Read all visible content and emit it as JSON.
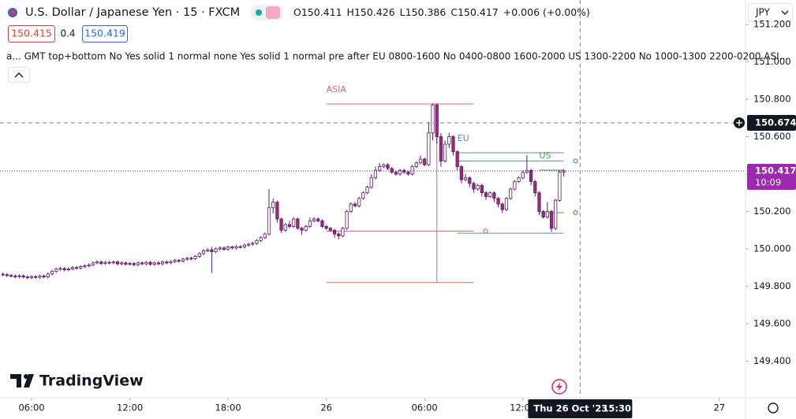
{
  "chart_data": {
    "type": "candlestick",
    "x": [
      4.25,
      4.5,
      4.75,
      5,
      5.25,
      5.5,
      5.75,
      6,
      6.25,
      6.5,
      6.75,
      7,
      7.25,
      7.5,
      7.75,
      8,
      8.25,
      8.5,
      8.75,
      9,
      9.25,
      9.5,
      9.75,
      10,
      10.25,
      10.5,
      10.75,
      11,
      11.25,
      11.5,
      11.75,
      12,
      12.25,
      12.5,
      12.75,
      13,
      13.25,
      13.5,
      13.75,
      14,
      14.25,
      14.5,
      14.75,
      15,
      15.25,
      15.5,
      15.75,
      16,
      16.25,
      16.5,
      16.75,
      17,
      17.25,
      17.5,
      17.75,
      18,
      18.25,
      18.5,
      18.75,
      19,
      19.25,
      19.5,
      19.75,
      20,
      20.25,
      20.5,
      20.75,
      21,
      21.25,
      21.5,
      21.75,
      22,
      22.25,
      22.5,
      22.75,
      23,
      23.25,
      23.5,
      23.75,
      24,
      24.25,
      24.5,
      24.75,
      25,
      25.25,
      25.5,
      25.75,
      26,
      26.25,
      26.5,
      26.75,
      27,
      27.25,
      27.5,
      27.75,
      28,
      28.25,
      28.5,
      28.75,
      29,
      29.25,
      29.5,
      29.75,
      30,
      30.25,
      30.5,
      30.75,
      31,
      31.25,
      31.5,
      31.75,
      32,
      32.25,
      32.5,
      32.75,
      33,
      33.25,
      33.5,
      33.75,
      34,
      34.25,
      34.5,
      34.75,
      35,
      35.25,
      35.5,
      35.75,
      36,
      36.25,
      36.5,
      36.75,
      37,
      37.25,
      37.5,
      37.75,
      38,
      38.25,
      38.5
    ],
    "open": [
      149.865,
      149.862,
      149.858,
      149.855,
      149.852,
      149.856,
      149.85,
      149.846,
      149.852,
      149.848,
      149.855,
      149.85,
      149.866,
      149.88,
      149.892,
      149.895,
      149.888,
      149.893,
      149.9,
      149.898,
      149.905,
      149.91,
      149.915,
      149.925,
      149.93,
      149.922,
      149.928,
      149.925,
      149.93,
      149.92,
      149.925,
      149.918,
      149.922,
      149.915,
      149.925,
      149.92,
      149.928,
      149.918,
      149.925,
      149.92,
      149.93,
      149.925,
      149.932,
      149.938,
      149.935,
      149.945,
      149.95,
      149.948,
      149.96,
      149.975,
      149.99,
      149.995,
      149.985,
      150.0,
      150.005,
      149.998,
      150.01,
      150.005,
      150.012,
      150.01,
      150.02,
      150.025,
      150.03,
      150.045,
      150.06,
      150.08,
      150.22,
      150.25,
      150.16,
      150.1,
      150.13,
      150.12,
      150.16,
      150.11,
      150.1,
      150.12,
      150.15,
      150.16,
      150.15,
      150.12,
      150.11,
      150.1,
      150.08,
      150.07,
      150.11,
      150.2,
      150.24,
      150.23,
      150.27,
      150.3,
      150.33,
      150.38,
      150.42,
      150.44,
      150.45,
      150.43,
      150.41,
      150.4,
      150.42,
      150.41,
      150.4,
      150.44,
      150.46,
      150.48,
      150.45,
      150.62,
      150.77,
      150.6,
      150.47,
      150.56,
      150.6,
      150.52,
      150.44,
      150.37,
      150.38,
      150.35,
      150.32,
      150.34,
      150.3,
      150.28,
      150.3,
      150.27,
      150.24,
      150.21,
      150.27,
      150.32,
      150.36,
      150.38,
      150.41,
      150.42,
      150.36,
      150.3,
      150.2,
      150.17,
      150.2,
      150.11,
      150.26,
      150.411
    ],
    "high": [
      149.873,
      149.87,
      149.866,
      149.863,
      149.864,
      149.864,
      149.858,
      149.86,
      149.86,
      149.863,
      149.863,
      149.874,
      149.888,
      149.9,
      149.903,
      149.903,
      149.901,
      149.908,
      149.908,
      149.913,
      149.918,
      149.923,
      149.933,
      149.938,
      149.938,
      149.936,
      149.936,
      149.938,
      149.938,
      149.933,
      149.933,
      149.93,
      149.93,
      149.933,
      149.933,
      149.936,
      149.936,
      149.933,
      149.933,
      149.938,
      149.938,
      149.94,
      149.946,
      149.946,
      149.953,
      149.958,
      149.958,
      149.968,
      149.983,
      149.998,
      150.003,
      150.01,
      150.008,
      150.013,
      150.013,
      150.018,
      150.018,
      150.02,
      150.02,
      150.028,
      150.033,
      150.038,
      150.053,
      150.068,
      150.088,
      150.32,
      150.27,
      150.258,
      150.168,
      150.138,
      150.15,
      150.17,
      150.168,
      150.118,
      150.128,
      150.168,
      150.17,
      150.168,
      150.158,
      150.128,
      150.118,
      150.108,
      150.088,
      150.118,
      150.208,
      150.248,
      150.25,
      150.278,
      150.308,
      150.338,
      150.4,
      150.44,
      150.46,
      150.458,
      150.458,
      150.438,
      150.418,
      150.428,
      150.428,
      150.418,
      150.448,
      150.468,
      150.5,
      150.488,
      150.68,
      150.778,
      150.778,
      150.62,
      150.58,
      150.62,
      150.608,
      150.528,
      150.448,
      150.4,
      150.388,
      150.358,
      150.348,
      150.348,
      150.308,
      150.308,
      150.308,
      150.278,
      150.248,
      150.278,
      150.328,
      150.368,
      150.388,
      150.418,
      150.5,
      150.428,
      150.368,
      150.308,
      150.208,
      150.25,
      150.208,
      150.268,
      150.419,
      150.426
    ],
    "low": [
      149.854,
      149.85,
      149.847,
      149.844,
      149.844,
      149.842,
      149.838,
      149.838,
      149.84,
      149.84,
      149.842,
      149.842,
      149.858,
      149.872,
      149.884,
      149.88,
      149.88,
      149.885,
      149.89,
      149.89,
      149.897,
      149.902,
      149.907,
      149.917,
      149.914,
      149.914,
      149.917,
      149.917,
      149.912,
      149.912,
      149.91,
      149.91,
      149.907,
      149.907,
      149.912,
      149.912,
      149.91,
      149.91,
      149.912,
      149.912,
      149.917,
      149.917,
      149.924,
      149.927,
      149.927,
      149.937,
      149.94,
      149.94,
      149.952,
      149.967,
      149.982,
      149.87,
      149.977,
      149.992,
      149.99,
      149.99,
      149.997,
      149.997,
      150.002,
      150.002,
      150.012,
      150.017,
      150.022,
      150.037,
      150.052,
      150.072,
      150.19,
      150.14,
      150.085,
      150.092,
      150.11,
      150.112,
      150.102,
      150.075,
      150.092,
      150.112,
      150.142,
      150.142,
      150.112,
      150.102,
      150.092,
      150.06,
      150.05,
      150.062,
      150.102,
      150.192,
      150.222,
      150.222,
      150.262,
      150.292,
      150.322,
      150.372,
      150.412,
      150.432,
      150.422,
      150.402,
      150.392,
      150.392,
      150.402,
      150.392,
      150.392,
      150.432,
      150.452,
      150.442,
      150.442,
      150.58,
      150.56,
      150.44,
      150.462,
      150.54,
      150.5,
      150.42,
      150.35,
      150.362,
      150.33,
      150.3,
      150.312,
      150.28,
      150.262,
      150.272,
      150.25,
      150.222,
      150.192,
      150.202,
      150.262,
      150.312,
      150.352,
      150.372,
      150.402,
      150.34,
      150.28,
      150.18,
      150.162,
      150.162,
      150.09,
      150.1,
      150.252,
      150.386
    ],
    "close": [
      149.862,
      149.858,
      149.855,
      149.852,
      149.856,
      149.85,
      149.846,
      149.852,
      149.848,
      149.855,
      149.85,
      149.866,
      149.88,
      149.892,
      149.895,
      149.888,
      149.893,
      149.9,
      149.898,
      149.905,
      149.91,
      149.915,
      149.925,
      149.93,
      149.922,
      149.928,
      149.925,
      149.93,
      149.92,
      149.925,
      149.918,
      149.922,
      149.915,
      149.925,
      149.92,
      149.928,
      149.918,
      149.925,
      149.92,
      149.93,
      149.925,
      149.932,
      149.938,
      149.935,
      149.945,
      149.95,
      149.948,
      149.96,
      149.975,
      149.99,
      149.995,
      149.985,
      150.0,
      150.005,
      149.998,
      150.01,
      150.005,
      150.012,
      150.01,
      150.02,
      150.025,
      150.03,
      150.045,
      150.06,
      150.08,
      150.22,
      150.25,
      150.16,
      150.1,
      150.13,
      150.12,
      150.16,
      150.11,
      150.1,
      150.12,
      150.15,
      150.16,
      150.15,
      150.12,
      150.11,
      150.1,
      150.08,
      150.07,
      150.11,
      150.2,
      150.24,
      150.23,
      150.27,
      150.3,
      150.33,
      150.38,
      150.42,
      150.44,
      150.45,
      150.43,
      150.41,
      150.4,
      150.42,
      150.41,
      150.4,
      150.44,
      150.46,
      150.48,
      150.45,
      150.62,
      150.77,
      150.6,
      150.47,
      150.56,
      150.6,
      150.52,
      150.44,
      150.37,
      150.38,
      150.35,
      150.32,
      150.34,
      150.3,
      150.28,
      150.3,
      150.27,
      150.24,
      150.21,
      150.27,
      150.32,
      150.36,
      150.38,
      150.41,
      150.42,
      150.36,
      150.3,
      150.2,
      150.17,
      150.2,
      150.11,
      150.26,
      150.411,
      150.417
    ],
    "up_color": "#ffffff",
    "down_color": "#9c2b78",
    "wick_color": "#5e1a6b",
    "xlim": [
      4.07,
      49.6
    ],
    "ylim": [
      149.204,
      151.331
    ],
    "grid": false,
    "xticks": [
      {
        "value": 6,
        "label": "06:00"
      },
      {
        "value": 12,
        "label": "12:00"
      },
      {
        "value": 18,
        "label": "18:00"
      },
      {
        "value": 24,
        "label": "26"
      },
      {
        "value": 30,
        "label": "06:00"
      },
      {
        "value": 36,
        "label": "12:00"
      },
      {
        "value": 48,
        "label": "27"
      }
    ],
    "yticks": [
      {
        "value": 149.4,
        "label": "149.400"
      },
      {
        "value": 149.6,
        "label": "149.600"
      },
      {
        "value": 149.8,
        "label": "149.800"
      },
      {
        "value": 150,
        "label": "150.000"
      },
      {
        "value": 150.2,
        "label": "150.200"
      },
      {
        "value": 150.4,
        "label": "150.400"
      },
      {
        "value": 150.6,
        "label": "150.600"
      },
      {
        "value": 150.8,
        "label": "150.800"
      },
      {
        "value": 151,
        "label": "151.000"
      },
      {
        "value": 151.2,
        "label": "151.200"
      }
    ],
    "sessions": [
      {
        "name": "ASIA",
        "color": "#e06666",
        "start": 24,
        "end": 33,
        "levels": [
          150.775,
          149.82,
          150.095
        ],
        "pivot": 30.75
      },
      {
        "name": "EU",
        "color": "#5b8fa8",
        "start": 32,
        "end": 38.5,
        "levels": [
          150.514,
          150.084,
          150.47
        ]
      },
      {
        "name": "US",
        "color": "#43a047",
        "start": 37,
        "end": 38.5,
        "levels": [
          150.421,
          150.194
        ]
      }
    ],
    "countdown": "10:09",
    "crosshair": {
      "x": 39.5,
      "price": 150.674,
      "date_label": "Thu 26 Oct '23",
      "time_label": "15:30"
    }
  },
  "header": {
    "symbol": "U.S. Dollar / Japanese Yen · 15 · FXCM",
    "ohlc_letters": [
      "O",
      "H",
      "L",
      "C"
    ],
    "change": "+0.006 (+0.00%)",
    "bid": 150.415,
    "spread": 0.4,
    "ask": 150.419,
    "indicator": "a... GMT top+bottom No Yes solid 1 normal none Yes solid 1 normal pre after EU 0800-1600 No 0400-0800 1600-2000 US 1300-2200 No 1000-1300 2200-0200 ASI...",
    "currency": "JPY",
    "logo": "TradingView"
  }
}
